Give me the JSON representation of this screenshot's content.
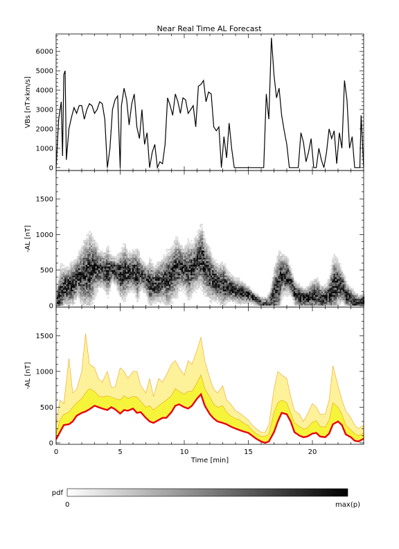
{
  "title": "Near Real Time AL Forecast",
  "chart_data": [
    {
      "type": "line",
      "panel": "vbs",
      "ylabel": "VBs [nT×km/s]",
      "xlim": [
        0,
        24
      ],
      "ylim": [
        -150,
        6900
      ],
      "yticks": [
        0,
        1000,
        2000,
        3000,
        4000,
        5000,
        6000
      ],
      "series": [
        {
          "x": [
            0,
            0.2,
            0.4,
            0.5,
            0.6,
            0.7,
            0.8,
            1.0,
            1.2,
            1.4,
            1.6,
            1.8,
            2.0,
            2.2,
            2.4,
            2.6,
            2.8,
            3.0,
            3.2,
            3.4,
            3.6,
            3.8,
            4.0,
            4.2,
            4.4,
            4.6,
            4.8,
            5.0,
            5.1,
            5.3,
            5.5,
            5.7,
            5.9,
            6.1,
            6.3,
            6.5,
            6.7,
            6.9,
            7.1,
            7.3,
            7.5,
            7.7,
            7.9,
            8.1,
            8.3,
            8.5,
            8.7,
            8.9,
            9.1,
            9.3,
            9.5,
            9.7,
            9.9,
            10.1,
            10.3,
            10.5,
            10.7,
            10.9,
            11.1,
            11.3,
            11.5,
            11.7,
            11.9,
            12.1,
            12.3,
            12.5,
            12.7,
            12.9,
            13.1,
            13.3,
            13.5,
            13.7,
            13.9,
            14.5,
            15.5,
            16.2,
            16.4,
            16.6,
            16.8,
            16.9,
            17.0,
            17.2,
            17.4,
            17.6,
            17.8,
            18.0,
            18.2,
            18.5,
            18.9,
            19.1,
            19.3,
            19.5,
            19.7,
            19.9,
            20.1,
            20.3,
            20.5,
            20.7,
            20.9,
            21.1,
            21.3,
            21.5,
            21.7,
            21.9,
            22.1,
            22.3,
            22.5,
            22.7,
            22.9,
            23.1,
            23.3,
            23.5,
            23.6,
            23.7,
            23.8,
            24.0
          ],
          "values": [
            0,
            2500,
            3400,
            600,
            4800,
            5000,
            400,
            2000,
            2600,
            3100,
            2800,
            3200,
            3200,
            2500,
            3000,
            3300,
            3200,
            2800,
            3000,
            3400,
            3300,
            2500,
            0,
            1000,
            3000,
            3500,
            3700,
            0,
            3200,
            4100,
            3500,
            2200,
            3300,
            3800,
            2100,
            1500,
            3000,
            1200,
            1800,
            0,
            800,
            1200,
            0,
            300,
            200,
            1200,
            3600,
            3200,
            2700,
            3800,
            3400,
            2800,
            3600,
            3500,
            2800,
            3000,
            3200,
            2100,
            4200,
            4300,
            4500,
            3400,
            3900,
            3800,
            2100,
            1900,
            2100,
            0,
            1600,
            500,
            2300,
            1000,
            0,
            0,
            0,
            0,
            3800,
            2500,
            6700,
            5800,
            4800,
            3600,
            4100,
            2700,
            1900,
            1200,
            0,
            0,
            0,
            1800,
            1300,
            300,
            800,
            1500,
            0,
            0,
            1000,
            400,
            0,
            800,
            2000,
            1500,
            1900,
            200,
            1800,
            1000,
            4500,
            3500,
            1000,
            1600,
            0,
            0,
            0,
            0,
            2700,
            0
          ]
        }
      ]
    },
    {
      "type": "heatmap",
      "panel": "pdf",
      "ylabel": "-AL [nT]",
      "xlim": [
        0,
        24
      ],
      "ylim": [
        -20,
        1900
      ],
      "yticks": [
        0,
        500,
        1000,
        1500
      ],
      "colorbar": {
        "label": "pdf",
        "min_label": "0",
        "max_label": "max(p)"
      },
      "median_x": [
        0,
        0.3,
        0.6,
        1.0,
        1.3,
        1.6,
        2.0,
        2.3,
        2.6,
        3.0,
        3.3,
        3.6,
        4.0,
        4.3,
        4.6,
        5.0,
        5.3,
        5.6,
        6.0,
        6.3,
        6.6,
        7.0,
        7.3,
        7.6,
        8.0,
        8.3,
        8.6,
        9.0,
        9.3,
        9.6,
        10.0,
        10.3,
        10.6,
        11.0,
        11.3,
        11.6,
        12.0,
        12.3,
        12.6,
        13.0,
        13.3,
        13.6,
        14.0,
        14.3,
        14.6,
        15.0,
        15.3,
        15.6,
        16.0,
        16.3,
        16.6,
        17.0,
        17.3,
        17.6,
        18.0,
        18.3,
        18.6,
        19.0,
        19.3,
        19.6,
        20.0,
        20.3,
        20.6,
        21.0,
        21.3,
        21.6,
        22.0,
        22.3,
        22.6,
        23.0,
        23.3,
        23.6,
        24.0
      ],
      "median_values": [
        50,
        150,
        250,
        260,
        300,
        380,
        420,
        440,
        470,
        520,
        500,
        480,
        460,
        500,
        470,
        410,
        460,
        450,
        480,
        420,
        430,
        350,
        300,
        280,
        320,
        350,
        350,
        430,
        520,
        540,
        500,
        480,
        520,
        620,
        680,
        520,
        400,
        340,
        300,
        280,
        260,
        230,
        200,
        180,
        160,
        140,
        100,
        60,
        20,
        0,
        20,
        150,
        300,
        420,
        400,
        300,
        150,
        100,
        80,
        90,
        130,
        140,
        90,
        80,
        130,
        260,
        300,
        250,
        120,
        80,
        30,
        20,
        60
      ],
      "spread_upper": [
        250,
        600,
        550,
        600,
        650,
        700,
        900,
        1000,
        1100,
        950,
        800,
        750,
        850,
        700,
        700,
        800,
        900,
        750,
        800,
        850,
        650,
        600,
        700,
        550,
        650,
        700,
        800,
        850,
        1000,
        900,
        850,
        950,
        900,
        1050,
        1200,
        950,
        800,
        650,
        600,
        650,
        500,
        450,
        400,
        380,
        320,
        280,
        200,
        160,
        120,
        120,
        180,
        600,
        800,
        750,
        700,
        500,
        350,
        300,
        250,
        280,
        380,
        400,
        300,
        300,
        450,
        750,
        650,
        500,
        350,
        250,
        200,
        150,
        200
      ]
    },
    {
      "type": "area",
      "panel": "forecast",
      "ylabel": "-AL [nT]",
      "xlabel": "Time [min]",
      "xlim": [
        0,
        24
      ],
      "ylim": [
        -20,
        1900
      ],
      "xticks": [
        0,
        5,
        10,
        15,
        20
      ],
      "yticks": [
        0,
        500,
        1000,
        1500
      ],
      "x": [
        0,
        0.3,
        0.6,
        1.0,
        1.3,
        1.6,
        2.0,
        2.3,
        2.6,
        3.0,
        3.3,
        3.6,
        4.0,
        4.3,
        4.6,
        5.0,
        5.3,
        5.6,
        6.0,
        6.3,
        6.6,
        7.0,
        7.3,
        7.6,
        8.0,
        8.3,
        8.6,
        9.0,
        9.3,
        9.6,
        10.0,
        10.3,
        10.6,
        11.0,
        11.3,
        11.6,
        12.0,
        12.3,
        12.6,
        13.0,
        13.3,
        13.6,
        14.0,
        14.3,
        14.6,
        15.0,
        15.3,
        15.6,
        16.0,
        16.3,
        16.6,
        17.0,
        17.3,
        17.6,
        18.0,
        18.3,
        18.6,
        19.0,
        19.3,
        19.6,
        20.0,
        20.3,
        20.6,
        21.0,
        21.3,
        21.6,
        22.0,
        22.3,
        22.6,
        23.0,
        23.3,
        23.6,
        24.0
      ],
      "median": [
        50,
        150,
        250,
        260,
        300,
        380,
        420,
        440,
        470,
        520,
        500,
        480,
        460,
        500,
        470,
        410,
        460,
        450,
        480,
        420,
        430,
        350,
        300,
        280,
        320,
        350,
        350,
        430,
        520,
        540,
        500,
        480,
        520,
        620,
        680,
        520,
        400,
        340,
        300,
        280,
        260,
        230,
        200,
        180,
        160,
        140,
        100,
        60,
        20,
        0,
        20,
        150,
        300,
        420,
        400,
        300,
        150,
        100,
        80,
        90,
        130,
        140,
        90,
        80,
        130,
        260,
        300,
        250,
        120,
        80,
        30,
        20,
        60
      ],
      "band_inner": [
        120,
        320,
        400,
        430,
        500,
        560,
        620,
        700,
        760,
        720,
        660,
        640,
        660,
        640,
        620,
        600,
        660,
        620,
        650,
        640,
        580,
        500,
        520,
        460,
        520,
        560,
        600,
        660,
        760,
        720,
        680,
        720,
        720,
        840,
        950,
        760,
        640,
        540,
        500,
        520,
        430,
        380,
        340,
        320,
        280,
        240,
        170,
        130,
        90,
        90,
        120,
        420,
        560,
        600,
        560,
        420,
        280,
        230,
        190,
        210,
        290,
        310,
        230,
        220,
        320,
        560,
        500,
        400,
        250,
        180,
        130,
        100,
        140
      ],
      "band_outer": [
        250,
        600,
        550,
        1180,
        700,
        750,
        1000,
        1530,
        1100,
        1050,
        900,
        850,
        1000,
        780,
        780,
        1050,
        1000,
        900,
        1000,
        1000,
        800,
        700,
        900,
        650,
        900,
        850,
        950,
        1100,
        1150,
        1050,
        950,
        1150,
        1100,
        1300,
        1480,
        1150,
        900,
        750,
        700,
        800,
        600,
        550,
        450,
        420,
        380,
        320,
        250,
        200,
        150,
        150,
        250,
        750,
        1000,
        950,
        900,
        650,
        450,
        400,
        300,
        400,
        550,
        500,
        400,
        400,
        600,
        1080,
        800,
        600,
        450,
        350,
        250,
        200,
        250
      ]
    }
  ]
}
